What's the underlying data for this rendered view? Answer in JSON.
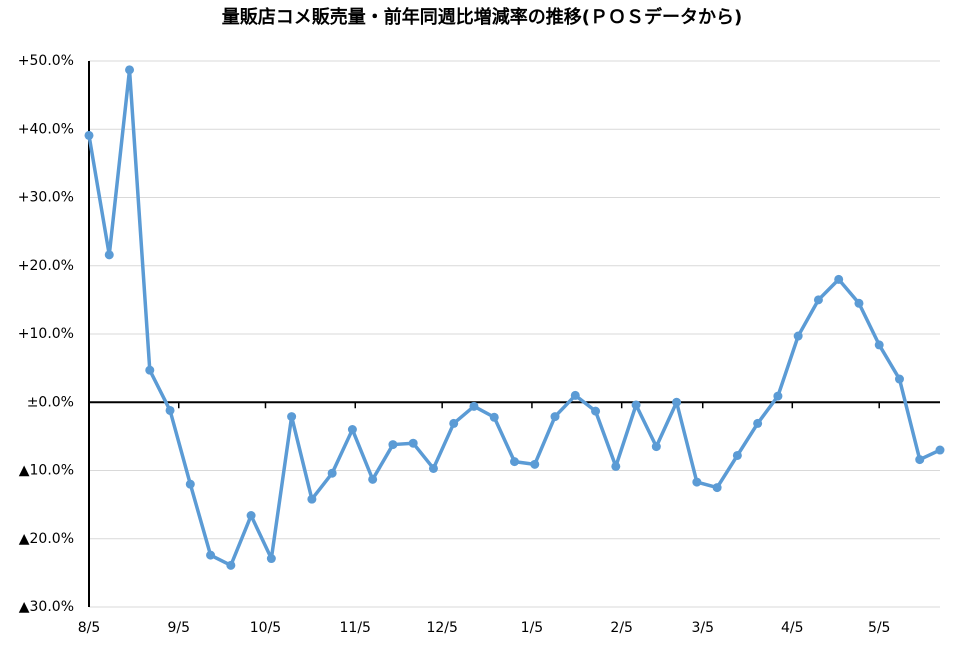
{
  "chart_data": {
    "type": "line",
    "title": "量販店コメ販売量・前年同週比増減率の推移(ＰＯＳデータから)",
    "values": [
      39.1,
      21.6,
      48.7,
      4.7,
      -1.2,
      -12.0,
      -22.4,
      -23.9,
      -16.6,
      -22.9,
      -2.1,
      -14.2,
      -10.4,
      -4.0,
      -11.3,
      -6.2,
      -6.0,
      -9.7,
      -3.1,
      -0.6,
      -2.2,
      -8.7,
      -9.1,
      -2.1,
      1.0,
      -1.3,
      -9.4,
      -0.4,
      -6.5,
      0.0,
      -11.7,
      -12.5,
      -7.8,
      -3.1,
      0.9,
      9.7,
      15.0,
      18.0,
      14.5,
      8.4,
      3.4,
      -8.4,
      -7.0
    ],
    "color": "#5b9bd5",
    "xlim": [
      0,
      42
    ],
    "xticks": [
      {
        "value": 0,
        "label": "8/5"
      },
      {
        "value": 4.43,
        "label": "9/5"
      },
      {
        "value": 8.71,
        "label": "10/5"
      },
      {
        "value": 13.14,
        "label": "11/5"
      },
      {
        "value": 17.43,
        "label": "12/5"
      },
      {
        "value": 21.86,
        "label": "1/5"
      },
      {
        "value": 26.29,
        "label": "2/5"
      },
      {
        "value": 30.29,
        "label": "3/5"
      },
      {
        "value": 34.71,
        "label": "4/5"
      },
      {
        "value": 39,
        "label": "5/5"
      }
    ],
    "ylim": [
      -30,
      50
    ],
    "yticks": [
      {
        "value": 50,
        "label": "+50.0%"
      },
      {
        "value": 40,
        "label": "+40.0%"
      },
      {
        "value": 30,
        "label": "+30.0%"
      },
      {
        "value": 20,
        "label": "+20.0%"
      },
      {
        "value": 10,
        "label": "+10.0%"
      },
      {
        "value": 0,
        "label": "±0.0%"
      },
      {
        "value": -10,
        "label": "▲10.0%"
      },
      {
        "value": -20,
        "label": "▲20.0%"
      },
      {
        "value": -30,
        "label": "▲30.0%"
      }
    ],
    "grid": true
  }
}
